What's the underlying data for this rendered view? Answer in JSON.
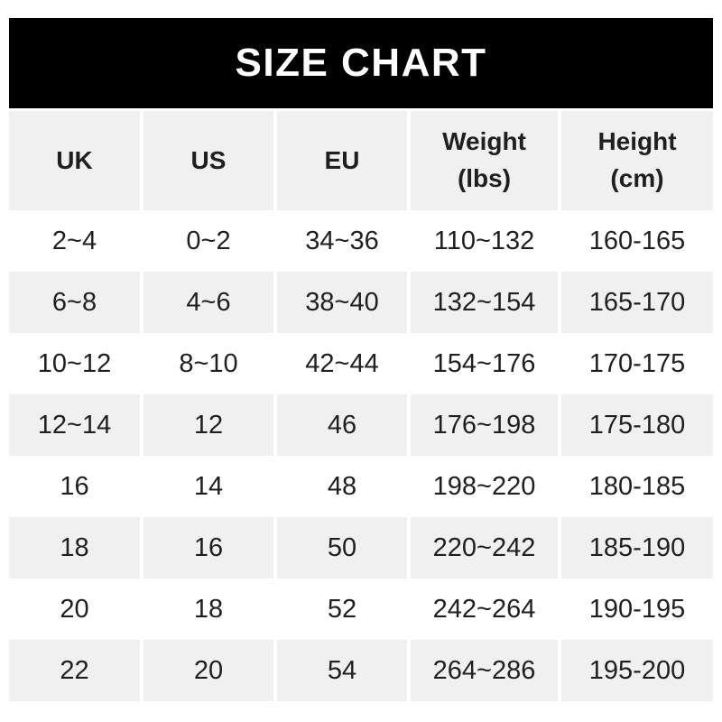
{
  "chart_data": {
    "type": "table",
    "title": "SIZE CHART",
    "columns": [
      "UK",
      "US",
      "EU",
      "Weight\n(lbs)",
      "Height\n(cm)"
    ],
    "rows": [
      [
        "2~4",
        "0~2",
        "34~36",
        "110~132",
        "160-165"
      ],
      [
        "6~8",
        "4~6",
        "38~40",
        "132~154",
        "165-170"
      ],
      [
        "10~12",
        "8~10",
        "42~44",
        "154~176",
        "170-175"
      ],
      [
        "12~14",
        "12",
        "46",
        "176~198",
        "175-180"
      ],
      [
        "16",
        "14",
        "48",
        "198~220",
        "180-185"
      ],
      [
        "18",
        "16",
        "50",
        "220~242",
        "185-190"
      ],
      [
        "20",
        "18",
        "52",
        "242~264",
        "190-195"
      ],
      [
        "22",
        "20",
        "54",
        "264~286",
        "195-200"
      ]
    ],
    "layout": {
      "header_row_shaded": true,
      "alternating_row_shading": true,
      "grid": "off"
    }
  },
  "colors": {
    "page_bg": "#ffffff",
    "banner_bg": "#000000",
    "banner_text": "#ffffff",
    "row_alt_bg": "#f0f0f1",
    "row_bg": "#ffffff",
    "text": "#1f1f1f"
  }
}
